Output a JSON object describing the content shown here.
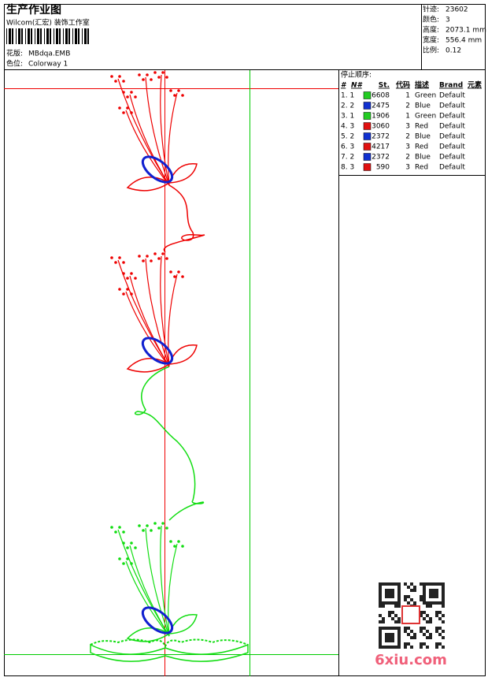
{
  "header": {
    "title": "生产作业图",
    "subtitle": "Wilcom(汇宏) 装饰工作室",
    "design_file_label": "花版:",
    "design_file": "MBdqa.EMB",
    "colorway_label": "色位:",
    "colorway": "Colorway 1"
  },
  "stats": [
    {
      "label": "针迹:",
      "value": "23602"
    },
    {
      "label": "颜色:",
      "value": "3"
    },
    {
      "label": "高度:",
      "value": "2073.1 mm"
    },
    {
      "label": "宽度:",
      "value": "556.4 mm"
    },
    {
      "label": "比例:",
      "value": "0.12"
    }
  ],
  "stop_sequence": {
    "title": "停止顺序:",
    "columns": [
      "#",
      "N#",
      "St.",
      "代码",
      "描述",
      "Brand",
      "元素"
    ],
    "rows": [
      {
        "seq": "1. 1",
        "swatch": "#22cc22",
        "stitches": "6608",
        "code": "1",
        "description": "Green",
        "brand": "Default"
      },
      {
        "seq": "2. 2",
        "swatch": "#1030d0",
        "stitches": "2475",
        "code": "2",
        "description": "Blue",
        "brand": "Default"
      },
      {
        "seq": "3. 1",
        "swatch": "#22cc22",
        "stitches": "1906",
        "code": "1",
        "description": "Green",
        "brand": "Default"
      },
      {
        "seq": "4. 3",
        "swatch": "#e01010",
        "stitches": "3060",
        "code": "3",
        "description": "Red",
        "brand": "Default"
      },
      {
        "seq": "5. 2",
        "swatch": "#1030d0",
        "stitches": "2372",
        "code": "2",
        "description": "Blue",
        "brand": "Default"
      },
      {
        "seq": "6. 3",
        "swatch": "#e01010",
        "stitches": "4217",
        "code": "3",
        "description": "Red",
        "brand": "Default"
      },
      {
        "seq": "7. 2",
        "swatch": "#1030d0",
        "stitches": "2372",
        "code": "2",
        "description": "Blue",
        "brand": "Default"
      },
      {
        "seq": "8. 3",
        "swatch": "#e01010",
        "stitches": "590",
        "code": "3",
        "description": "Red",
        "brand": "Default"
      }
    ]
  },
  "watermark": "6xiu.com"
}
